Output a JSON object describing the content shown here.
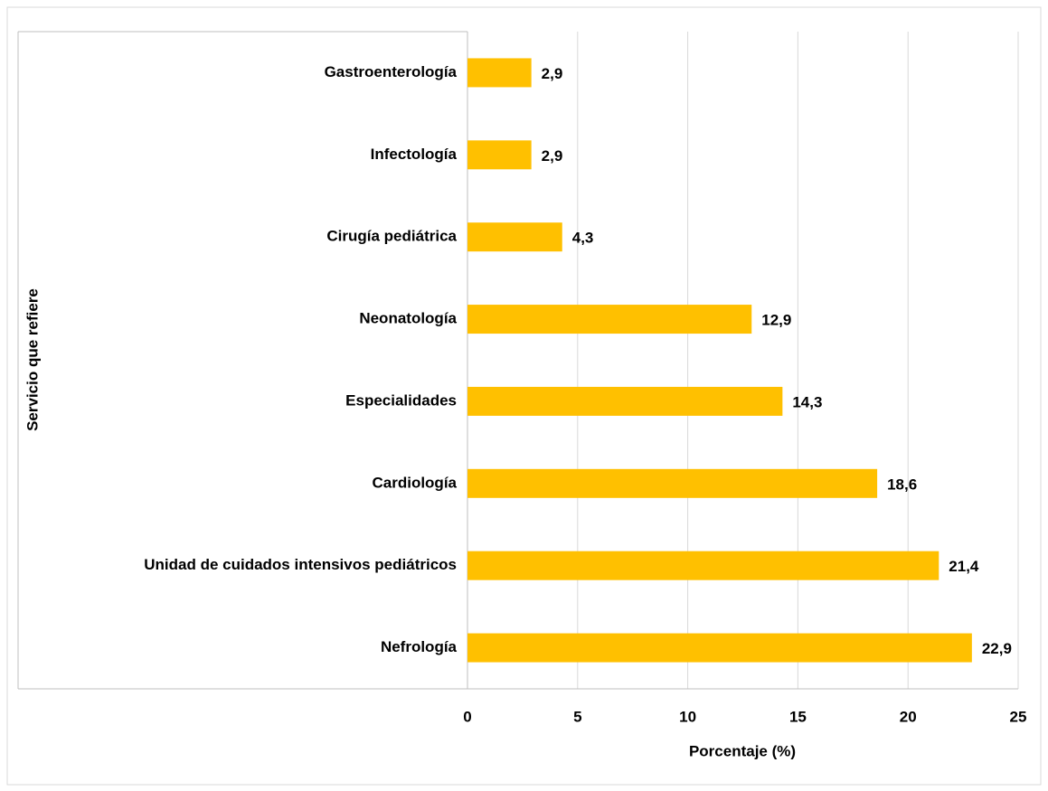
{
  "chart_data": {
    "type": "bar",
    "orientation": "horizontal",
    "x_label": "Porcentaje (%)",
    "y_label": "Servicio que refiere",
    "categories": [
      "Gastroenterología",
      "Infectología",
      "Cirugía pediátrica",
      "Neonatología",
      "Especialidades",
      "Cardiología",
      "Unidad de cuidados intensivos pediátricos",
      "Nefrología"
    ],
    "values": [
      2.9,
      2.9,
      4.3,
      12.9,
      14.3,
      18.6,
      21.4,
      22.9
    ],
    "value_labels": [
      "2,9",
      "2,9",
      "4,3",
      "12,9",
      "14,3",
      "18,6",
      "21,4",
      "22,9"
    ],
    "color": "#FFC000",
    "xlim": [
      0,
      25
    ],
    "xticks": [
      0,
      5,
      10,
      15,
      20,
      25
    ],
    "grid": true
  }
}
